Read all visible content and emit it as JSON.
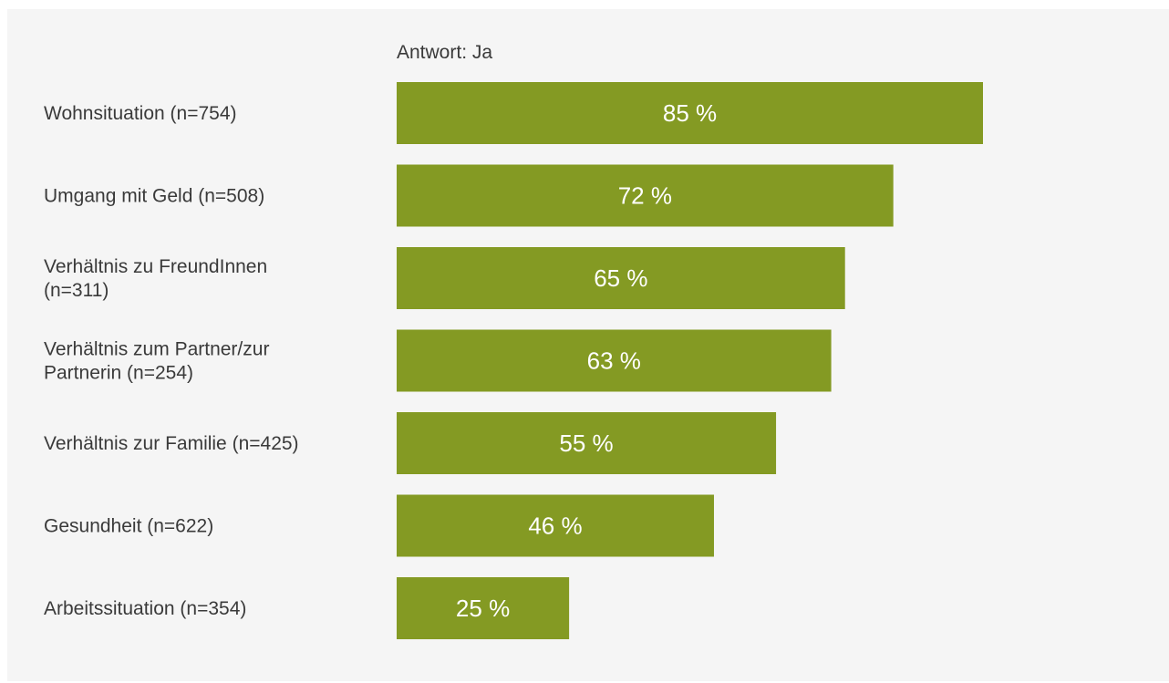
{
  "chart_data": {
    "type": "bar",
    "orientation": "horizontal",
    "series_label": "Antwort: Ja",
    "categories": [
      [
        "Wohnsituation (n=754)"
      ],
      [
        "Umgang mit Geld (n=508)"
      ],
      [
        "Verhältnis zu FreundInnen",
        "(n=311)"
      ],
      [
        "Verhältnis zum Partner/zur",
        "Partnerin (n=254)"
      ],
      [
        "Verhältnis zur Familie (n=425)"
      ],
      [
        "Gesundheit (n=622)"
      ],
      [
        "Arbeitssituation (n=354)"
      ]
    ],
    "values": [
      85,
      72,
      65,
      63,
      55,
      46,
      25
    ],
    "value_labels": [
      "85 %",
      "72 %",
      "65 %",
      "63 %",
      "55 %",
      "46 %",
      "25 %"
    ],
    "unit": "%",
    "xlim": [
      0,
      100
    ],
    "grid": false,
    "bar_color": "#849a23",
    "background_color": "#f5f5f5",
    "label_color": "#ffffff"
  }
}
